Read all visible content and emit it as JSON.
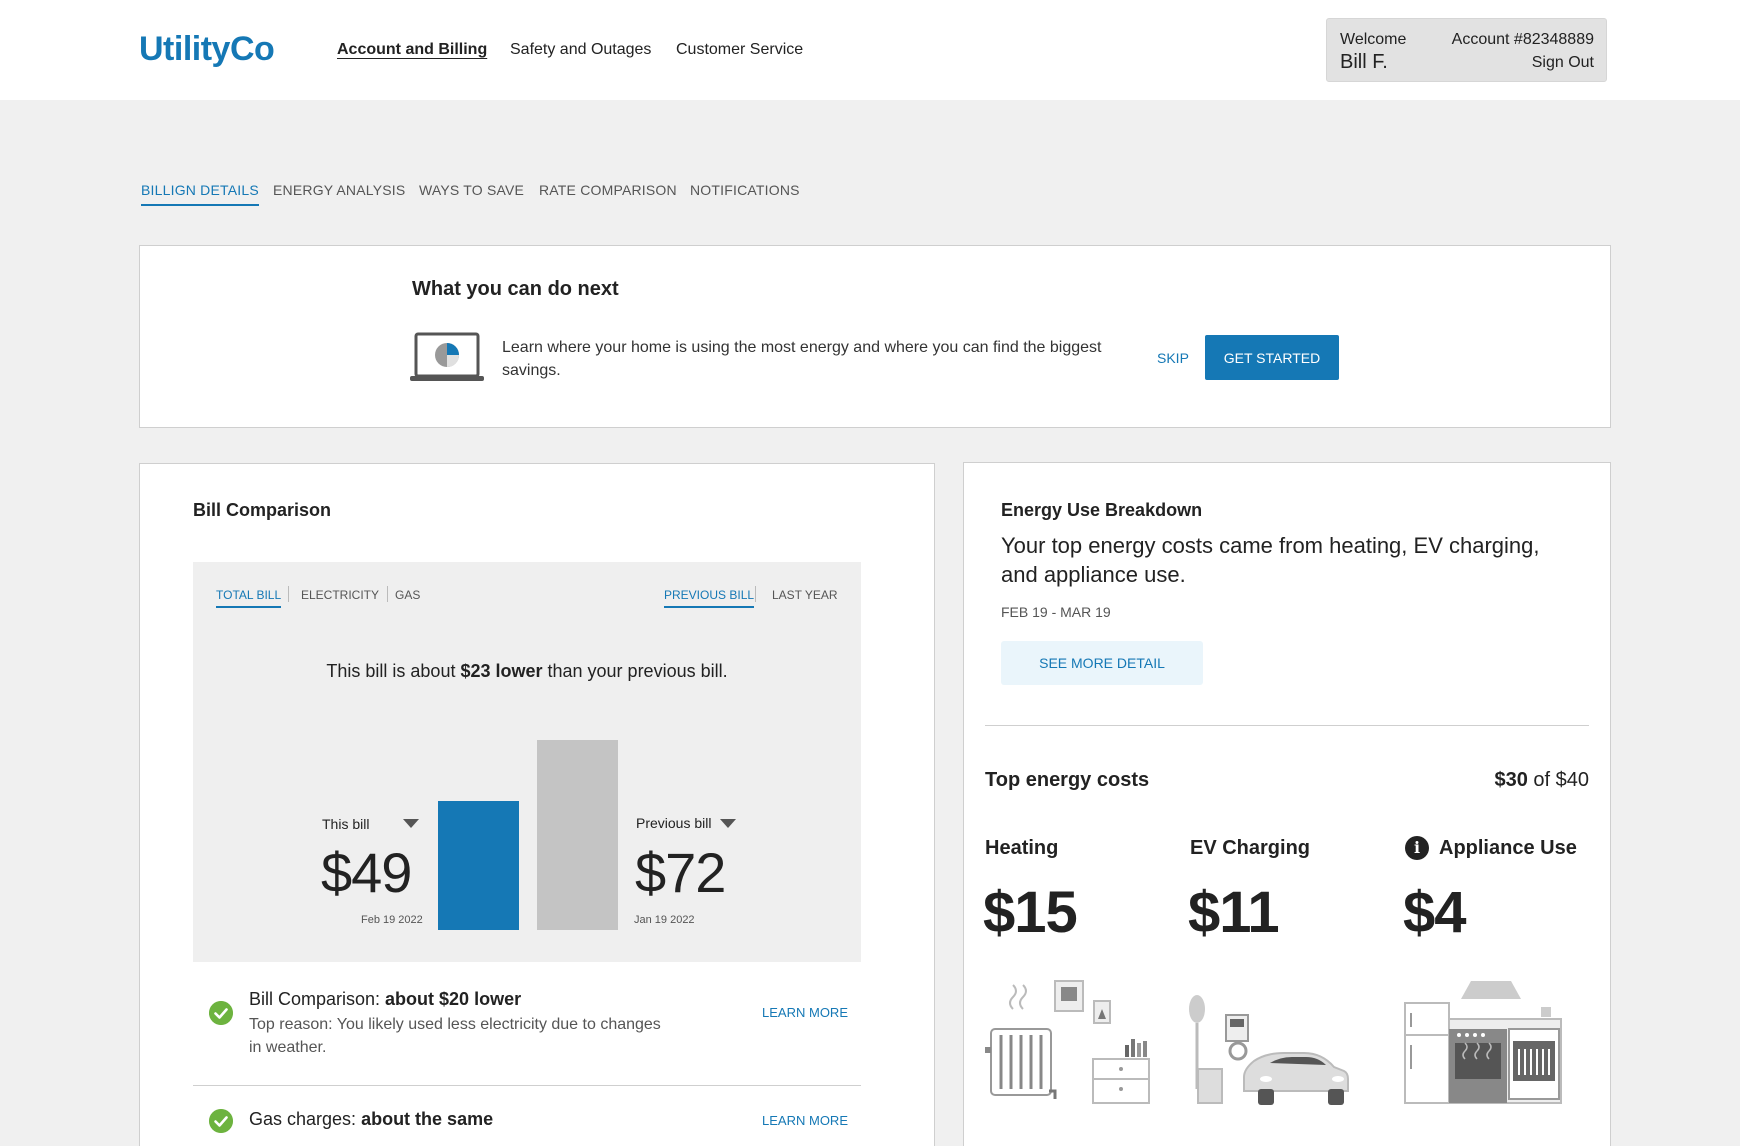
{
  "header": {
    "logo": "UtilityCo",
    "nav": [
      "Account and Billing",
      "Safety and Outages",
      "Customer Service"
    ],
    "welcome_label": "Welcome",
    "user_name": "Bill F.",
    "account_number": "Account #82348889",
    "sign_out": "Sign Out"
  },
  "subtabs": [
    "BILLIGN DETAILS",
    "ENERGY ANALYSIS",
    "WAYS TO SAVE",
    "RATE COMPARISON",
    "NOTIFICATIONS"
  ],
  "next_card": {
    "title": "What you can do next",
    "text": "Learn where your home is using the most energy and where you can find the biggest savings.",
    "skip": "SKIP",
    "get_started": "GET STARTED"
  },
  "bill_comparison": {
    "title": "Bill Comparison",
    "type_tabs": [
      "TOTAL BILL",
      "ELECTRICITY",
      "GAS"
    ],
    "period_tabs": [
      "PREVIOUS BILL",
      "LAST YEAR"
    ],
    "summary_prefix": "This bill is about ",
    "summary_bold": "$23 lower",
    "summary_suffix": " than your previous bill.",
    "this_bill_label": "This bill",
    "this_bill_amount": "$49",
    "this_bill_date": "Feb 19 2022",
    "previous_bill_label": "Previous bill",
    "previous_bill_amount": "$72",
    "previous_bill_date": "Jan 19 2022",
    "chart_values": {
      "this_bill": 49,
      "previous_bill": 72
    },
    "colors": {
      "this_bill": "#1578b5",
      "previous_bill": "#c4c4c4"
    },
    "rows": [
      {
        "title_prefix": "Bill Comparison: ",
        "title_bold": "about $20 lower",
        "subtitle": "Top reason: You likely used less electricity due to changes in weather.",
        "link": "LEARN MORE"
      },
      {
        "title_prefix": "Gas charges: ",
        "title_bold": "about the same",
        "subtitle": "",
        "link": "LEARN MORE"
      }
    ]
  },
  "energy_breakdown": {
    "title": "Energy Use Breakdown",
    "summary": "Your top energy costs came from heating, EV charging, and appliance use.",
    "date_range": "FEB 19 - MAR 19",
    "detail_button": "SEE MORE DETAIL",
    "top_costs_label": "Top energy costs",
    "top_total_bold": "$30",
    "top_total_suffix": " of $40",
    "categories": [
      {
        "name": "Heating",
        "amount": "$15",
        "icon": "heating-illustration"
      },
      {
        "name": "EV Charging",
        "amount": "$11",
        "icon": "ev-charging-illustration"
      },
      {
        "name": "Appliance Use",
        "amount": "$4",
        "icon": "appliance-illustration"
      }
    ]
  }
}
